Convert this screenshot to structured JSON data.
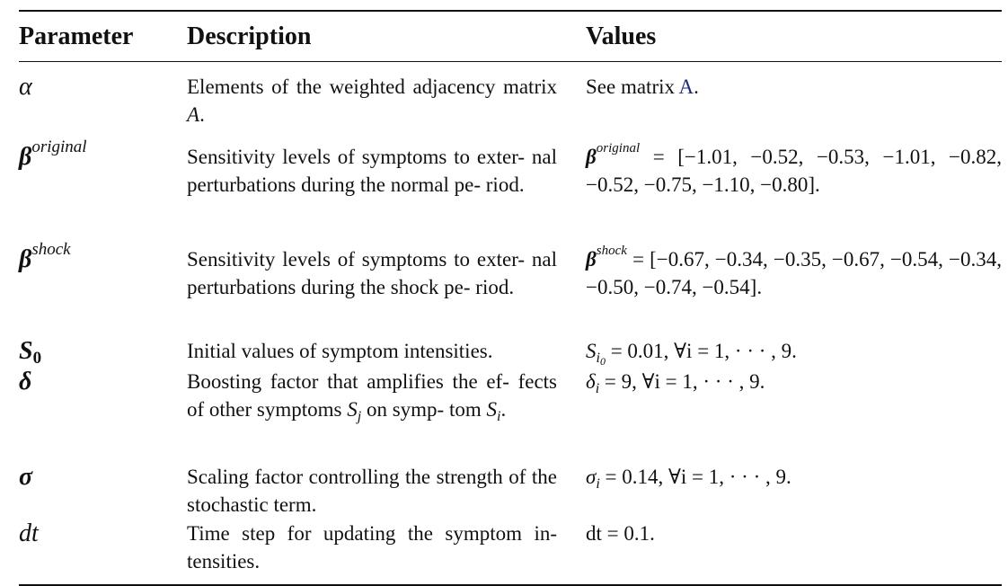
{
  "table": {
    "headers": {
      "parameter": "Parameter",
      "description": "Description",
      "values": "Values"
    },
    "rows": [
      {
        "param": "α",
        "description": "Elements of the weighted adjacency matrix A.",
        "value_prefix": "See matrix ",
        "value_link": "A",
        "value_suffix": "."
      },
      {
        "param_base": "β",
        "param_sup": "original",
        "description": "Sensitivity levels of symptoms to exter- nal perturbations during the normal pe- riod.",
        "value_base": "β",
        "value_sup": "original",
        "value_rest": " = [−1.01, −0.52, −0.53, −1.01, −0.82, −0.52, −0.75, −1.10, −0.80]."
      },
      {
        "param_base": "β",
        "param_sup": "shock",
        "description": "Sensitivity levels of symptoms to exter- nal perturbations during the shock pe- riod.",
        "value_base": "β",
        "value_sup": "shock",
        "value_rest": " = [−0.67, −0.34, −0.35, −0.67, −0.54, −0.34, −0.50, −0.74, −0.54]."
      },
      {
        "param_base": "S",
        "param_sub": "0",
        "description": "Initial values of symptom intensities.",
        "value_base": "S",
        "value_sub": "i",
        "value_subsub": "0",
        "value_rest": " = 0.01, ∀i = 1, · · · , 9."
      },
      {
        "param": "δ",
        "description_part1": "Boosting factor that amplifies the ef- fects of other symptoms ",
        "description_sym1": "S",
        "description_sub1": "j",
        "description_part2": " on symp- tom ",
        "description_sym2": "S",
        "description_sub2": "i",
        "description_part3": ".",
        "value_base": "δ",
        "value_sub": "i",
        "value_rest": " = 9, ∀i = 1, · · · , 9."
      },
      {
        "param": "σ",
        "description": "Scaling factor controlling the strength of the stochastic term.",
        "value_base": "σ",
        "value_sub": "i",
        "value_rest": " = 0.14, ∀i = 1, · · · , 9."
      },
      {
        "param": "dt",
        "description": "Time step for updating the symptom in- tensities.",
        "value_text": "dt = 0.1."
      }
    ]
  }
}
